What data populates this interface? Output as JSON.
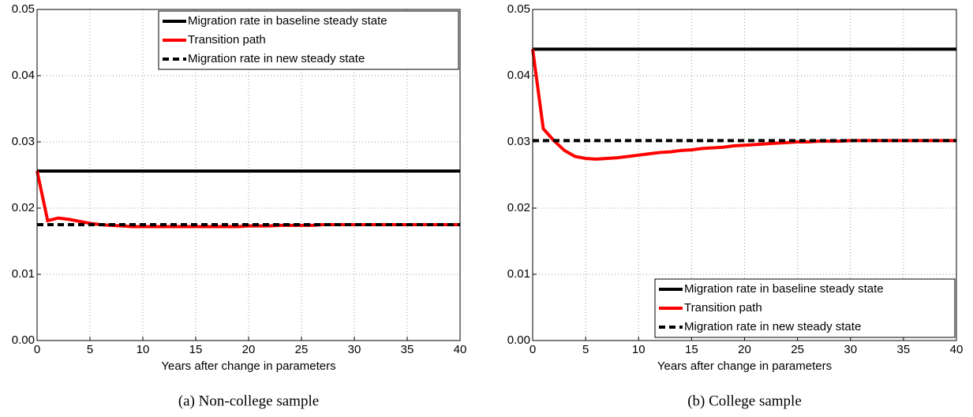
{
  "chart_data": [
    {
      "type": "line",
      "caption": "(a)  Non-college sample",
      "xlabel": "Years after change in parameters",
      "xlim": [
        0,
        40
      ],
      "ylim": [
        0,
        0.05
      ],
      "xticks": [
        0,
        5,
        10,
        15,
        20,
        25,
        30,
        35,
        40
      ],
      "yticks": [
        {
          "value": 0,
          "label": "0.00"
        },
        0.01,
        0.02,
        0.03,
        0.04,
        0.05
      ],
      "grid": true,
      "legend": "upper right",
      "series": [
        {
          "name": "Migration rate in baseline steady state",
          "color": "#000000",
          "linestyle": "solid",
          "x": [
            0,
            40
          ],
          "values": [
            0.0256,
            0.0256
          ]
        },
        {
          "name": "Transition path",
          "color": "#ff0000",
          "linestyle": "solid",
          "x": [
            0,
            1,
            2,
            3,
            4,
            5,
            6,
            7,
            8,
            9,
            10,
            11,
            12,
            13,
            14,
            15,
            16,
            17,
            18,
            19,
            20,
            21,
            22,
            23,
            24,
            25,
            26,
            27,
            28,
            29,
            30,
            31,
            32,
            33,
            34,
            35,
            36,
            37,
            38,
            39,
            40
          ],
          "values": [
            0.0256,
            0.0181,
            0.0185,
            0.0183,
            0.018,
            0.0177,
            0.0175,
            0.0174,
            0.0173,
            0.0172,
            0.0172,
            0.0172,
            0.0172,
            0.0172,
            0.0172,
            0.0172,
            0.0172,
            0.0172,
            0.0172,
            0.0172,
            0.0173,
            0.0173,
            0.0173,
            0.0174,
            0.0174,
            0.0174,
            0.0174,
            0.0175,
            0.0175,
            0.0175,
            0.0175,
            0.0175,
            0.0175,
            0.0175,
            0.0175,
            0.0175,
            0.0175,
            0.0175,
            0.0175,
            0.0175,
            0.0175
          ]
        },
        {
          "name": "Migration rate in new steady state",
          "color": "#000000",
          "linestyle": "dashed",
          "x": [
            0,
            40
          ],
          "values": [
            0.0175,
            0.0175
          ]
        }
      ]
    },
    {
      "type": "line",
      "caption": "(b)  College sample",
      "xlabel": "Years after change in parameters",
      "xlim": [
        0,
        40
      ],
      "ylim": [
        0,
        0.05
      ],
      "xticks": [
        0,
        5,
        10,
        15,
        20,
        25,
        30,
        35,
        40
      ],
      "yticks": [
        {
          "value": 0,
          "label": "0.00"
        },
        0.01,
        0.02,
        0.03,
        0.04,
        0.05
      ],
      "grid": true,
      "legend": "lower right",
      "series": [
        {
          "name": "Migration rate in baseline steady state",
          "color": "#000000",
          "linestyle": "solid",
          "x": [
            0,
            40
          ],
          "values": [
            0.044,
            0.044
          ]
        },
        {
          "name": "Transition path",
          "color": "#ff0000",
          "linestyle": "solid",
          "x": [
            0,
            1,
            2,
            3,
            4,
            5,
            6,
            7,
            8,
            9,
            10,
            11,
            12,
            13,
            14,
            15,
            16,
            17,
            18,
            19,
            20,
            21,
            22,
            23,
            24,
            25,
            26,
            27,
            28,
            29,
            30,
            31,
            32,
            33,
            34,
            35,
            36,
            37,
            38,
            39,
            40
          ],
          "values": [
            0.044,
            0.032,
            0.0302,
            0.0287,
            0.0278,
            0.0275,
            0.0274,
            0.0275,
            0.0276,
            0.0278,
            0.028,
            0.0282,
            0.0284,
            0.0285,
            0.0287,
            0.0288,
            0.029,
            0.0291,
            0.0292,
            0.0294,
            0.0295,
            0.0296,
            0.0297,
            0.0298,
            0.0299,
            0.03,
            0.03,
            0.0301,
            0.0301,
            0.0301,
            0.0302,
            0.0302,
            0.0302,
            0.0302,
            0.0302,
            0.0302,
            0.0302,
            0.0302,
            0.0302,
            0.0302,
            0.0302
          ]
        },
        {
          "name": "Migration rate in new steady state",
          "color": "#000000",
          "linestyle": "dashed",
          "x": [
            0,
            40
          ],
          "values": [
            0.0302,
            0.0302
          ]
        }
      ]
    }
  ]
}
